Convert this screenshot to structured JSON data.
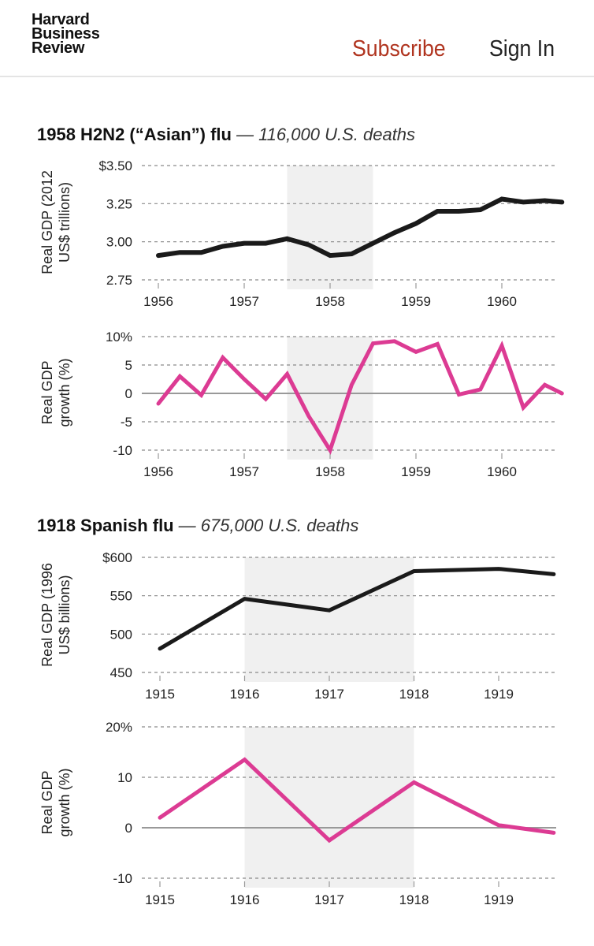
{
  "header": {
    "logo": [
      "Harvard",
      "Business",
      "Review"
    ],
    "subscribe_label": "Subscribe",
    "signin_label": "Sign In"
  },
  "colors": {
    "level_line": "#1a1a1a",
    "growth_line": "#dc3b93",
    "shade": "#f0f0f0",
    "subscribe": "#b0341f"
  },
  "chart_data": [
    {
      "section_title": "1958 H2N2 (“Asian”) flu",
      "section_subtitle": "— 116,000 U.S. deaths",
      "type": "line",
      "ylabel": [
        "Real GDP (2012",
        "US$ trillions)"
      ],
      "ylim": [
        2.75,
        3.5
      ],
      "yticks": [
        3.5,
        3.25,
        3.0,
        2.75
      ],
      "ytick_labels": [
        "$3.50",
        "3.25",
        "3.00",
        "2.75"
      ],
      "xticks": [
        1956,
        1957,
        1958,
        1959,
        1960
      ],
      "xtick_labels": [
        "1956",
        "1957",
        "1958",
        "1959",
        "1960"
      ],
      "shaded_range": [
        1957.5,
        1958.5
      ],
      "x": [
        1956.0,
        1956.25,
        1956.5,
        1956.75,
        1957.0,
        1957.25,
        1957.5,
        1957.75,
        1958.0,
        1958.25,
        1958.5,
        1958.75,
        1959.0,
        1959.25,
        1959.5,
        1959.75,
        1960.0,
        1960.25,
        1960.5,
        1960.7
      ],
      "series": [
        {
          "name": "Real GDP",
          "values": [
            2.91,
            2.93,
            2.93,
            2.97,
            2.99,
            2.99,
            3.02,
            2.98,
            2.91,
            2.92,
            2.99,
            3.06,
            3.12,
            3.2,
            3.2,
            3.21,
            3.28,
            3.26,
            3.27,
            3.26
          ]
        }
      ]
    },
    {
      "type": "line",
      "ylabel": [
        "Real GDP",
        "growth (%)"
      ],
      "ylim": [
        -10,
        10
      ],
      "yticks": [
        10,
        5,
        0,
        -5,
        -10
      ],
      "ytick_labels": [
        "10%",
        "5",
        "0",
        "-5",
        "-10"
      ],
      "zero_line": true,
      "xticks": [
        1956,
        1957,
        1958,
        1959,
        1960
      ],
      "xtick_labels": [
        "1956",
        "1957",
        "1958",
        "1959",
        "1960"
      ],
      "shaded_range": [
        1957.5,
        1958.5
      ],
      "x": [
        1956.0,
        1956.25,
        1956.5,
        1956.75,
        1957.0,
        1957.25,
        1957.5,
        1957.75,
        1958.0,
        1958.25,
        1958.5,
        1958.75,
        1959.0,
        1959.25,
        1959.5,
        1959.75,
        1960.0,
        1960.25,
        1960.5,
        1960.7
      ],
      "series": [
        {
          "name": "Real GDP growth",
          "values": [
            -1.8,
            3.0,
            -0.3,
            6.3,
            2.5,
            -1.0,
            3.4,
            -4.0,
            -10.0,
            1.5,
            8.8,
            9.2,
            7.3,
            8.7,
            -0.2,
            0.7,
            8.4,
            -2.5,
            1.5,
            0.0
          ]
        }
      ]
    },
    {
      "section_title": "1918 Spanish flu",
      "section_subtitle": "— 675,000 U.S. deaths",
      "type": "line",
      "ylabel": [
        "Real GDP (1996",
        "US$ billions)"
      ],
      "ylim": [
        450,
        600
      ],
      "yticks": [
        600,
        550,
        500,
        450
      ],
      "ytick_labels": [
        "$600",
        "550",
        "500",
        "450"
      ],
      "xticks": [
        1915,
        1916,
        1917,
        1918,
        1919
      ],
      "xtick_labels": [
        "1915",
        "1916",
        "1917",
        "1918",
        "1919"
      ],
      "shaded_range": [
        1916,
        1918
      ],
      "x": [
        1915,
        1916,
        1917,
        1918,
        1919,
        1919.65
      ],
      "series": [
        {
          "name": "Real GDP",
          "values": [
            481,
            546,
            531,
            582,
            585,
            578
          ]
        }
      ]
    },
    {
      "type": "line",
      "ylabel": [
        "Real GDP",
        "growth (%)"
      ],
      "ylim": [
        -10,
        20
      ],
      "yticks": [
        20,
        10,
        0,
        -10
      ],
      "ytick_labels": [
        "20%",
        "10",
        "0",
        "-10"
      ],
      "zero_line": true,
      "xticks": [
        1915,
        1916,
        1917,
        1918,
        1919
      ],
      "xtick_labels": [
        "1915",
        "1916",
        "1917",
        "1918",
        "1919"
      ],
      "shaded_range": [
        1916,
        1918
      ],
      "x": [
        1915,
        1916,
        1917,
        1918,
        1919,
        1919.65
      ],
      "series": [
        {
          "name": "Real GDP growth",
          "values": [
            2,
            13.5,
            -2.5,
            9,
            0.5,
            -1
          ]
        }
      ]
    }
  ]
}
